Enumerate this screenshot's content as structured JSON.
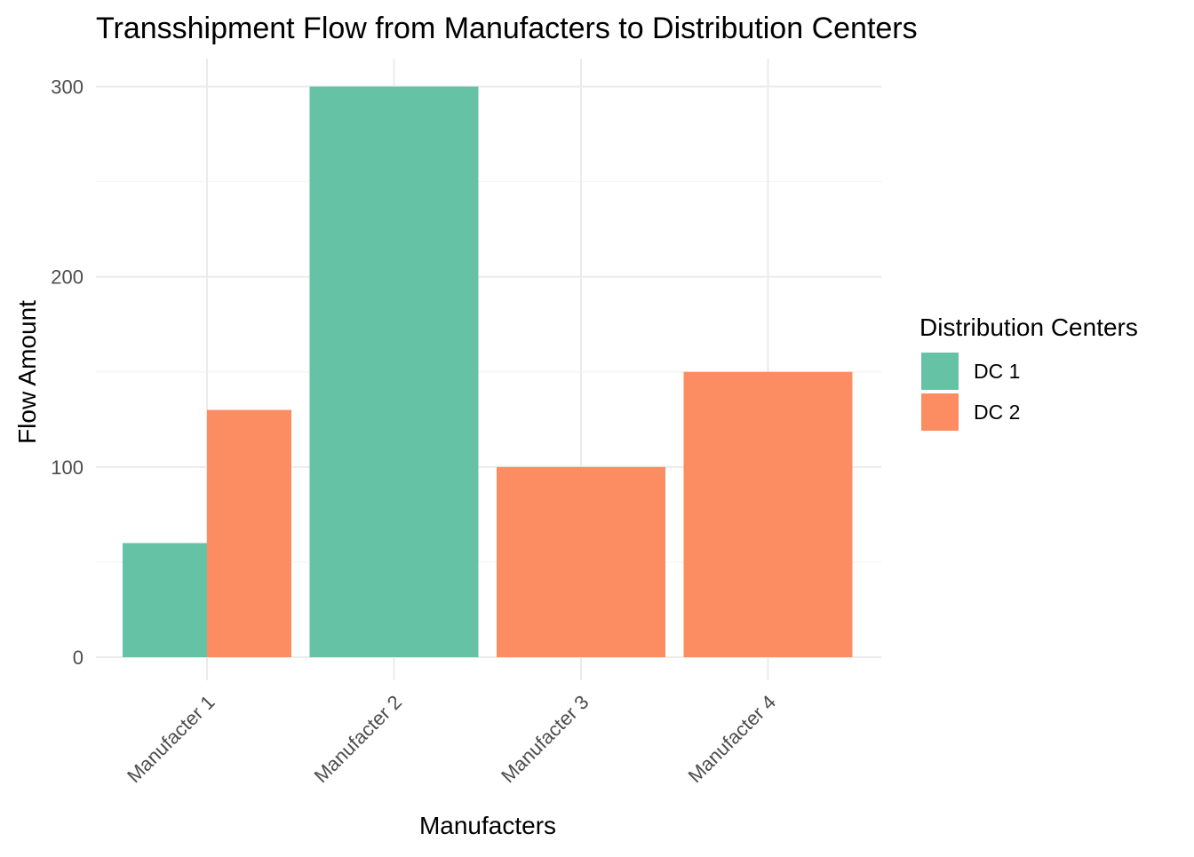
{
  "chart_data": {
    "type": "bar",
    "barmode": "stack",
    "title": "Transshipment Flow from Manufacters to Distribution Centers",
    "xlabel": "Manufacters",
    "ylabel": "Flow Amount",
    "categories": [
      "Manufacter 1",
      "Manufacter 2",
      "Manufacter 3",
      "Manufacter 4"
    ],
    "series": [
      {
        "name": "DC 1",
        "color": "#66c2a5",
        "values": [
          60,
          300,
          0,
          0
        ]
      },
      {
        "name": "DC 2",
        "color": "#fc8d62",
        "values": [
          130,
          0,
          100,
          150
        ]
      }
    ],
    "ylim": [
      0,
      315
    ],
    "yticks": [
      0,
      100,
      200,
      300
    ],
    "grid": true,
    "legend": {
      "title": "Distribution Centers",
      "placement": "right"
    }
  }
}
